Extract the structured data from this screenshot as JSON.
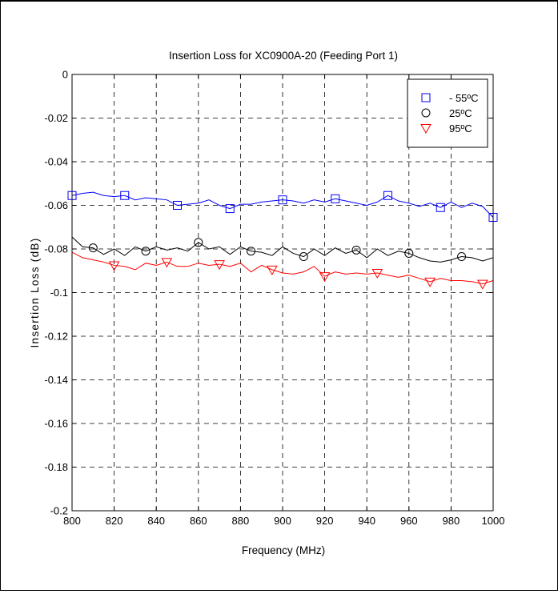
{
  "chart_data": {
    "type": "line",
    "title": "Insertion Loss for XC0900A-20 (Feeding Port 1)",
    "xlabel": "Frequency (MHz)",
    "ylabel": "Insertion Loss (dB)",
    "xlim": [
      800,
      1000
    ],
    "ylim": [
      -0.2,
      0
    ],
    "xticks": [
      800,
      820,
      840,
      860,
      880,
      900,
      920,
      940,
      960,
      980,
      1000
    ],
    "yticks": [
      0,
      -0.02,
      -0.04,
      -0.06,
      -0.08,
      -0.1,
      -0.12,
      -0.14,
      -0.16,
      -0.18,
      -0.2
    ],
    "xtick_labels": [
      "800",
      "820",
      "840",
      "860",
      "880",
      "900",
      "920",
      "940",
      "960",
      "980",
      "1000"
    ],
    "ytick_labels": [
      "0",
      "-0.02",
      "-0.04",
      "-0.06",
      "-0.08",
      "-0.1",
      "-0.12",
      "-0.14",
      "-0.16",
      "-0.18",
      "-0.2"
    ],
    "grid": true,
    "legend_position": "top-right",
    "series": [
      {
        "name": "- 55ºC",
        "color": "#0000ff",
        "marker": "square",
        "x": [
          800,
          805,
          810,
          815,
          820,
          825,
          830,
          835,
          840,
          845,
          850,
          855,
          860,
          865,
          870,
          875,
          880,
          885,
          890,
          895,
          900,
          905,
          910,
          915,
          920,
          925,
          930,
          935,
          940,
          945,
          950,
          955,
          960,
          965,
          970,
          975,
          980,
          985,
          990,
          995,
          1000
        ],
        "y": [
          -0.0555,
          -0.0545,
          -0.054,
          -0.0555,
          -0.056,
          -0.0555,
          -0.0575,
          -0.0565,
          -0.057,
          -0.0575,
          -0.06,
          -0.0595,
          -0.059,
          -0.0575,
          -0.06,
          -0.0615,
          -0.0595,
          -0.0595,
          -0.0585,
          -0.058,
          -0.0575,
          -0.058,
          -0.059,
          -0.0575,
          -0.0585,
          -0.057,
          -0.058,
          -0.059,
          -0.06,
          -0.0585,
          -0.0555,
          -0.058,
          -0.059,
          -0.0605,
          -0.059,
          -0.061,
          -0.0585,
          -0.061,
          -0.059,
          -0.0605,
          -0.0655
        ],
        "marker_x": [
          800,
          825,
          850,
          875,
          900,
          925,
          950,
          975,
          1000
        ]
      },
      {
        "name": "25ºC",
        "color": "#000000",
        "marker": "circle",
        "x": [
          800,
          805,
          810,
          815,
          820,
          825,
          830,
          835,
          840,
          845,
          850,
          855,
          860,
          865,
          870,
          875,
          880,
          885,
          890,
          895,
          900,
          905,
          910,
          915,
          920,
          925,
          930,
          935,
          940,
          945,
          950,
          955,
          960,
          965,
          970,
          975,
          980,
          985,
          990,
          995,
          1000
        ],
        "y": [
          -0.0745,
          -0.079,
          -0.0795,
          -0.0825,
          -0.08,
          -0.083,
          -0.079,
          -0.081,
          -0.079,
          -0.0805,
          -0.0795,
          -0.081,
          -0.077,
          -0.08,
          -0.079,
          -0.0825,
          -0.079,
          -0.081,
          -0.0815,
          -0.083,
          -0.079,
          -0.082,
          -0.0835,
          -0.08,
          -0.083,
          -0.0795,
          -0.082,
          -0.0805,
          -0.084,
          -0.08,
          -0.083,
          -0.081,
          -0.082,
          -0.084,
          -0.0855,
          -0.086,
          -0.085,
          -0.0835,
          -0.084,
          -0.0855,
          -0.084
        ],
        "marker_x": [
          810,
          835,
          860,
          885,
          910,
          935,
          960,
          985
        ]
      },
      {
        "name": "95ºC",
        "color": "#ff0000",
        "marker": "triangle-down",
        "x": [
          800,
          805,
          810,
          815,
          820,
          825,
          830,
          835,
          840,
          845,
          850,
          855,
          860,
          865,
          870,
          875,
          880,
          885,
          890,
          895,
          900,
          905,
          910,
          915,
          920,
          925,
          930,
          935,
          940,
          945,
          950,
          955,
          960,
          965,
          970,
          975,
          980,
          985,
          990,
          995,
          1000
        ],
        "y": [
          -0.0815,
          -0.084,
          -0.085,
          -0.086,
          -0.0875,
          -0.088,
          -0.0895,
          -0.0865,
          -0.0875,
          -0.086,
          -0.088,
          -0.088,
          -0.0865,
          -0.0875,
          -0.087,
          -0.088,
          -0.0865,
          -0.0905,
          -0.0875,
          -0.0895,
          -0.091,
          -0.0915,
          -0.0905,
          -0.088,
          -0.0925,
          -0.0905,
          -0.0915,
          -0.091,
          -0.0915,
          -0.091,
          -0.092,
          -0.093,
          -0.092,
          -0.0935,
          -0.095,
          -0.0935,
          -0.0945,
          -0.0945,
          -0.095,
          -0.096,
          -0.0945
        ],
        "marker_x": [
          820,
          845,
          870,
          895,
          920,
          945,
          970,
          995
        ]
      }
    ]
  }
}
